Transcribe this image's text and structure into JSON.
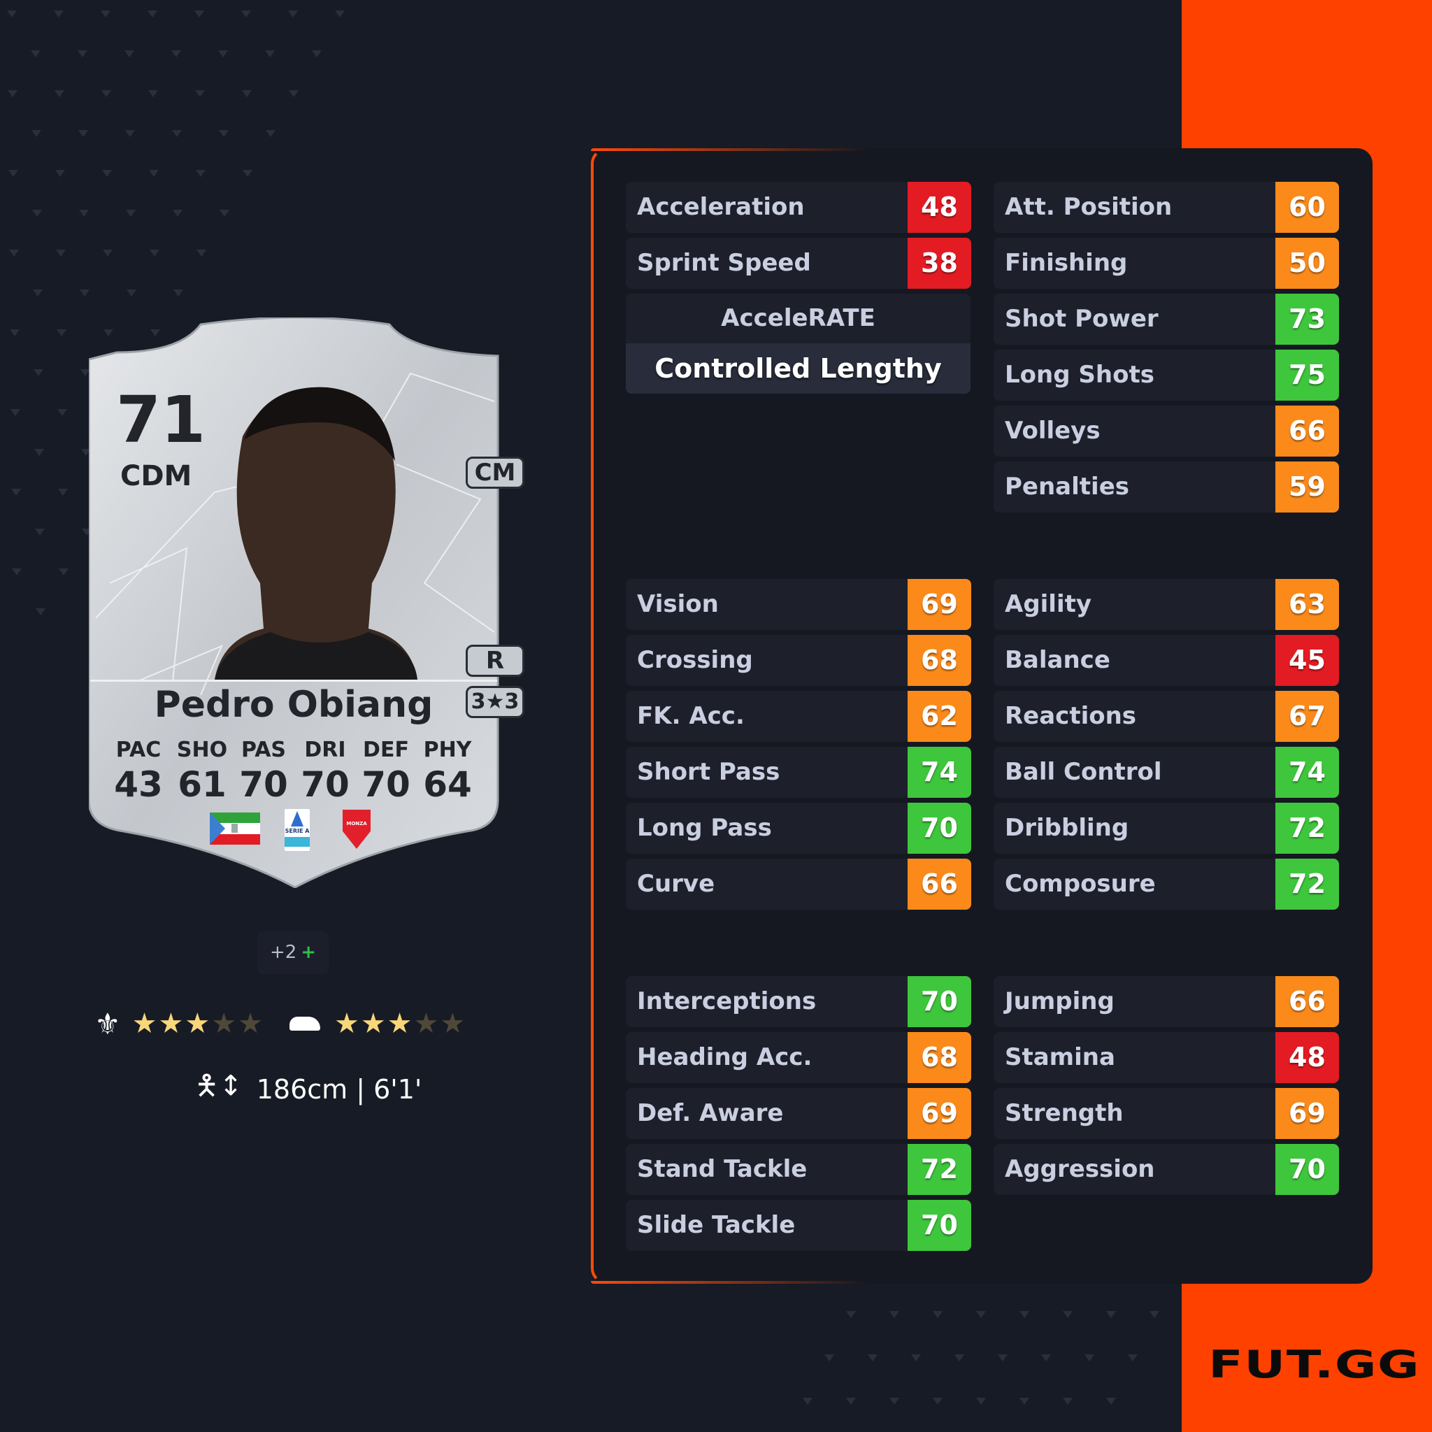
{
  "colors": {
    "background": "#171b25",
    "panel": "#151820",
    "accent": "#ff4100",
    "red": "#e31b23",
    "orange": "#fb8a1a",
    "green": "#3ec63c",
    "star_on": "#f7d77a",
    "star_off": "#4f4838"
  },
  "card": {
    "rating": "71",
    "position": "CDM",
    "alt_position": "CM",
    "foot": "R",
    "skill_weak": "3★3",
    "name": "Pedro Obiang",
    "stats": [
      {
        "label": "PAC",
        "value": "43"
      },
      {
        "label": "SHO",
        "value": "61"
      },
      {
        "label": "PAS",
        "value": "70"
      },
      {
        "label": "DRI",
        "value": "70"
      },
      {
        "label": "DEF",
        "value": "70"
      },
      {
        "label": "PHY",
        "value": "64"
      }
    ],
    "nation": "Equatorial Guinea flag",
    "league": "SERIE A",
    "club": "MONZA"
  },
  "chemistry": {
    "value": "+2",
    "plus": "+"
  },
  "skill_moves": {
    "icon": "jester-hat-icon",
    "stars": 3,
    "max": 5
  },
  "weak_foot": {
    "icon": "boot-icon",
    "stars": 3,
    "max": 5
  },
  "height": {
    "text": "186cm | 6'1'"
  },
  "playstyle": {
    "label": "AcceleRATE",
    "value": "Controlled Lengthy"
  },
  "groups": [
    {
      "col": 0,
      "grp": 0,
      "items": [
        {
          "label": "Acceleration",
          "value": 48
        },
        {
          "label": "Sprint Speed",
          "value": 38
        }
      ]
    },
    {
      "col": 1,
      "grp": 0,
      "items": [
        {
          "label": "Att. Position",
          "value": 60
        },
        {
          "label": "Finishing",
          "value": 50
        },
        {
          "label": "Shot Power",
          "value": 73
        },
        {
          "label": "Long Shots",
          "value": 75
        },
        {
          "label": "Volleys",
          "value": 66
        },
        {
          "label": "Penalties",
          "value": 59
        }
      ]
    },
    {
      "col": 0,
      "grp": 1,
      "items": [
        {
          "label": "Vision",
          "value": 69
        },
        {
          "label": "Crossing",
          "value": 68
        },
        {
          "label": "FK. Acc.",
          "value": 62
        },
        {
          "label": "Short Pass",
          "value": 74
        },
        {
          "label": "Long Pass",
          "value": 70
        },
        {
          "label": "Curve",
          "value": 66
        }
      ]
    },
    {
      "col": 1,
      "grp": 1,
      "items": [
        {
          "label": "Agility",
          "value": 63
        },
        {
          "label": "Balance",
          "value": 45
        },
        {
          "label": "Reactions",
          "value": 67
        },
        {
          "label": "Ball Control",
          "value": 74
        },
        {
          "label": "Dribbling",
          "value": 72
        },
        {
          "label": "Composure",
          "value": 72
        }
      ]
    },
    {
      "col": 0,
      "grp": 2,
      "items": [
        {
          "label": "Interceptions",
          "value": 70
        },
        {
          "label": "Heading Acc.",
          "value": 68
        },
        {
          "label": "Def. Aware",
          "value": 69
        },
        {
          "label": "Stand Tackle",
          "value": 72
        },
        {
          "label": "Slide Tackle",
          "value": 70
        }
      ]
    },
    {
      "col": 1,
      "grp": 2,
      "items": [
        {
          "label": "Jumping",
          "value": 66
        },
        {
          "label": "Stamina",
          "value": 48
        },
        {
          "label": "Strength",
          "value": 69
        },
        {
          "label": "Aggression",
          "value": 70
        }
      ]
    }
  ],
  "brand": {
    "logo": "FUT.GG"
  }
}
